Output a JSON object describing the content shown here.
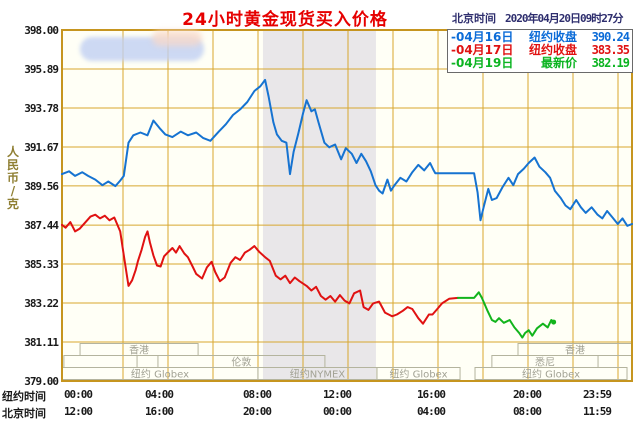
{
  "title": "24小时黄金现货买入价格",
  "header": {
    "clock_label": "北京时间",
    "clock_value": "2020年04月20日09时27分"
  },
  "y_axis": {
    "unit": "人\n民\n币\n/\n克",
    "ticks": [
      "398.00",
      "395.89",
      "393.78",
      "391.67",
      "389.56",
      "387.44",
      "385.33",
      "383.22",
      "381.11",
      "379.00"
    ]
  },
  "x_axis": {
    "rows": [
      {
        "header": "纽约时间",
        "labels": [
          "00:00",
          "04:00",
          "08:00",
          "12:00",
          "16:00",
          "20:00",
          "23:59"
        ]
      },
      {
        "header": "北京时间",
        "labels": [
          "12:00",
          "16:00",
          "20:00",
          "00:00",
          "04:00",
          "08:00",
          "11:59"
        ]
      }
    ]
  },
  "legend": {
    "rows": [
      {
        "marker": "-",
        "date": "04月16日",
        "label": "纽约收盘",
        "value": "390.24",
        "color": "#0c6cd8"
      },
      {
        "marker": "-",
        "date": "04月17日",
        "label": "纽约收盘",
        "value": "383.35",
        "color": "#e01212"
      },
      {
        "marker": "-",
        "date": "04月19日",
        "label": "最新价",
        "value": "382.19",
        "color": "#0cb422"
      }
    ]
  },
  "colors": {
    "grid": "#d8a72f",
    "plot_border": "#c6951f",
    "plot_bg": "#fffff6",
    "band": "#e9e7e9",
    "session_border": "#b4b49e",
    "session_text": "#a2a294",
    "blue": "#1673d1",
    "red": "#e01212",
    "green": "#12b41c"
  },
  "sessions": [
    {
      "row": 0,
      "from": 0.76,
      "to": 5.73,
      "label": "香港"
    },
    {
      "row": 0,
      "from": 19.2,
      "to": 24.0,
      "label": "香港"
    },
    {
      "row": 1,
      "from": 0.08,
      "to": 3.16,
      "label": ""
    },
    {
      "row": 1,
      "from": 4.04,
      "to": 11.07,
      "label": "伦敦"
    },
    {
      "row": 1,
      "from": 18.1,
      "to": 22.57,
      "label": "悉尼"
    },
    {
      "row": 2,
      "from": 0.0,
      "to": 8.25,
      "label": "纽约 Globex"
    },
    {
      "row": 2,
      "from": 8.25,
      "to": 13.26,
      "label": "纽约NYMEX"
    },
    {
      "row": 2,
      "from": 13.26,
      "to": 16.76,
      "label": "纽约 Globex"
    },
    {
      "row": 2,
      "from": 17.39,
      "to": 23.79,
      "label": "纽约 Globex"
    }
  ],
  "chart_data": {
    "type": "line",
    "title": "24小时黄金现货买入价格",
    "xlabel": "纽约时间 (小时)",
    "ylabel": "人民币/克",
    "x_range": [
      0,
      24
    ],
    "y_range": [
      379.0,
      398.0
    ],
    "y_ticks": [
      379.0,
      381.11,
      383.22,
      385.33,
      387.44,
      389.56,
      391.67,
      393.78,
      395.89,
      398.0
    ],
    "grid": true,
    "highlight_band": {
      "from_hour": 8.46,
      "to_hour": 13.22
    },
    "end_marker": {
      "hour": 20.7,
      "value": 382.19,
      "series": "04月19日 最新价"
    },
    "series": [
      {
        "name": "04月16日 纽约收盘 390.24",
        "color": "#1673d1",
        "points": [
          [
            0,
            390.2
          ],
          [
            0.3,
            390.35
          ],
          [
            0.55,
            390.1
          ],
          [
            0.85,
            390.3
          ],
          [
            1.1,
            390.1
          ],
          [
            1.4,
            389.9
          ],
          [
            1.7,
            389.6
          ],
          [
            1.95,
            389.8
          ],
          [
            2.25,
            389.55
          ],
          [
            2.45,
            389.85
          ],
          [
            2.6,
            390.1
          ],
          [
            2.8,
            391.9
          ],
          [
            3.0,
            392.3
          ],
          [
            3.3,
            392.45
          ],
          [
            3.6,
            392.3
          ],
          [
            3.85,
            393.1
          ],
          [
            4.1,
            392.7
          ],
          [
            4.35,
            392.35
          ],
          [
            4.65,
            392.2
          ],
          [
            5.0,
            392.5
          ],
          [
            5.3,
            392.3
          ],
          [
            5.65,
            392.45
          ],
          [
            5.95,
            392.15
          ],
          [
            6.25,
            392.0
          ],
          [
            6.6,
            392.5
          ],
          [
            6.9,
            392.9
          ],
          [
            7.2,
            393.4
          ],
          [
            7.5,
            393.7
          ],
          [
            7.8,
            394.1
          ],
          [
            8.1,
            394.7
          ],
          [
            8.35,
            394.95
          ],
          [
            8.55,
            395.3
          ],
          [
            8.7,
            394.4
          ],
          [
            8.9,
            393.0
          ],
          [
            9.05,
            392.35
          ],
          [
            9.25,
            392.0
          ],
          [
            9.45,
            391.9
          ],
          [
            9.6,
            390.2
          ],
          [
            9.75,
            391.4
          ],
          [
            9.95,
            392.4
          ],
          [
            10.15,
            393.5
          ],
          [
            10.3,
            394.2
          ],
          [
            10.5,
            393.6
          ],
          [
            10.65,
            393.7
          ],
          [
            10.8,
            393.0
          ],
          [
            11.05,
            391.9
          ],
          [
            11.25,
            391.65
          ],
          [
            11.5,
            391.8
          ],
          [
            11.75,
            391.0
          ],
          [
            11.95,
            391.6
          ],
          [
            12.2,
            391.3
          ],
          [
            12.4,
            390.8
          ],
          [
            12.6,
            391.3
          ],
          [
            12.8,
            390.9
          ],
          [
            13.0,
            390.35
          ],
          [
            13.2,
            389.6
          ],
          [
            13.35,
            389.3
          ],
          [
            13.5,
            389.15
          ],
          [
            13.7,
            389.9
          ],
          [
            13.85,
            389.3
          ],
          [
            14.0,
            389.6
          ],
          [
            14.25,
            390.0
          ],
          [
            14.5,
            389.8
          ],
          [
            14.75,
            390.3
          ],
          [
            15.0,
            390.7
          ],
          [
            15.25,
            390.4
          ],
          [
            15.5,
            390.8
          ],
          [
            15.65,
            390.4
          ],
          [
            15.72,
            390.25
          ],
          [
            17.35,
            390.25
          ],
          [
            17.5,
            389.2
          ],
          [
            17.62,
            387.7
          ],
          [
            17.75,
            388.4
          ],
          [
            17.95,
            389.4
          ],
          [
            18.1,
            388.8
          ],
          [
            18.3,
            388.9
          ],
          [
            18.55,
            389.5
          ],
          [
            18.8,
            390.0
          ],
          [
            19.0,
            389.6
          ],
          [
            19.2,
            390.2
          ],
          [
            19.45,
            390.5
          ],
          [
            19.65,
            390.8
          ],
          [
            19.9,
            391.1
          ],
          [
            20.1,
            390.6
          ],
          [
            20.35,
            390.3
          ],
          [
            20.55,
            390.0
          ],
          [
            20.75,
            389.3
          ],
          [
            21.0,
            388.9
          ],
          [
            21.2,
            388.5
          ],
          [
            21.4,
            388.3
          ],
          [
            21.65,
            388.8
          ],
          [
            21.85,
            388.4
          ],
          [
            22.05,
            388.1
          ],
          [
            22.3,
            388.4
          ],
          [
            22.55,
            388.0
          ],
          [
            22.75,
            387.8
          ],
          [
            22.95,
            388.2
          ],
          [
            23.15,
            387.9
          ],
          [
            23.4,
            387.5
          ],
          [
            23.6,
            387.8
          ],
          [
            23.8,
            387.4
          ],
          [
            24,
            387.5
          ]
        ]
      },
      {
        "name": "04月17日 纽约收盘 383.35",
        "color": "#e01212",
        "points": [
          [
            0,
            387.45
          ],
          [
            0.15,
            387.3
          ],
          [
            0.35,
            387.6
          ],
          [
            0.55,
            387.1
          ],
          [
            0.75,
            387.25
          ],
          [
            1.2,
            387.9
          ],
          [
            1.4,
            388.0
          ],
          [
            1.6,
            387.8
          ],
          [
            1.8,
            387.95
          ],
          [
            2.0,
            387.7
          ],
          [
            2.2,
            387.85
          ],
          [
            2.45,
            387.1
          ],
          [
            2.6,
            385.8
          ],
          [
            2.8,
            384.15
          ],
          [
            2.95,
            384.45
          ],
          [
            3.1,
            385.0
          ],
          [
            3.2,
            385.5
          ],
          [
            3.35,
            386.1
          ],
          [
            3.5,
            386.8
          ],
          [
            3.6,
            387.1
          ],
          [
            3.7,
            386.5
          ],
          [
            3.85,
            385.8
          ],
          [
            4.0,
            385.25
          ],
          [
            4.15,
            385.2
          ],
          [
            4.3,
            385.75
          ],
          [
            4.45,
            385.95
          ],
          [
            4.65,
            386.2
          ],
          [
            4.8,
            385.95
          ],
          [
            4.95,
            386.3
          ],
          [
            5.15,
            385.9
          ],
          [
            5.3,
            385.7
          ],
          [
            5.5,
            385.2
          ],
          [
            5.65,
            384.8
          ],
          [
            5.9,
            384.55
          ],
          [
            6.1,
            385.15
          ],
          [
            6.3,
            385.45
          ],
          [
            6.45,
            384.9
          ],
          [
            6.65,
            384.4
          ],
          [
            6.85,
            384.6
          ],
          [
            7.1,
            385.4
          ],
          [
            7.3,
            385.7
          ],
          [
            7.5,
            385.55
          ],
          [
            7.7,
            385.95
          ],
          [
            7.9,
            386.1
          ],
          [
            8.1,
            386.3
          ],
          [
            8.3,
            386.0
          ],
          [
            8.55,
            385.7
          ],
          [
            8.75,
            385.5
          ],
          [
            9.0,
            384.7
          ],
          [
            9.2,
            384.5
          ],
          [
            9.4,
            384.7
          ],
          [
            9.6,
            384.3
          ],
          [
            9.8,
            384.6
          ],
          [
            10.0,
            384.4
          ],
          [
            10.3,
            384.15
          ],
          [
            10.5,
            383.9
          ],
          [
            10.7,
            384.1
          ],
          [
            10.9,
            383.6
          ],
          [
            11.1,
            383.4
          ],
          [
            11.3,
            383.6
          ],
          [
            11.5,
            383.3
          ],
          [
            11.7,
            383.65
          ],
          [
            11.9,
            383.35
          ],
          [
            12.1,
            383.2
          ],
          [
            12.3,
            383.75
          ],
          [
            12.55,
            383.9
          ],
          [
            12.7,
            383.0
          ],
          [
            12.9,
            382.85
          ],
          [
            13.1,
            383.2
          ],
          [
            13.35,
            383.3
          ],
          [
            13.6,
            382.7
          ],
          [
            13.9,
            382.5
          ],
          [
            14.1,
            382.6
          ],
          [
            14.35,
            382.8
          ],
          [
            14.55,
            383.0
          ],
          [
            14.75,
            382.9
          ],
          [
            15.0,
            382.4
          ],
          [
            15.2,
            382.1
          ],
          [
            15.45,
            382.6
          ],
          [
            15.6,
            382.6
          ],
          [
            15.8,
            382.9
          ],
          [
            16.0,
            383.2
          ],
          [
            16.3,
            383.45
          ],
          [
            16.67,
            383.5
          ]
        ]
      },
      {
        "name": "04月19日 最新价 382.19",
        "color": "#12b41c",
        "points": [
          [
            16.67,
            383.5
          ],
          [
            17.35,
            383.5
          ],
          [
            17.55,
            383.8
          ],
          [
            17.68,
            383.5
          ],
          [
            17.9,
            382.85
          ],
          [
            18.1,
            382.3
          ],
          [
            18.25,
            382.2
          ],
          [
            18.4,
            382.4
          ],
          [
            18.6,
            382.15
          ],
          [
            18.85,
            382.3
          ],
          [
            19.05,
            381.9
          ],
          [
            19.25,
            381.6
          ],
          [
            19.38,
            381.35
          ],
          [
            19.5,
            381.6
          ],
          [
            19.65,
            381.75
          ],
          [
            19.8,
            381.45
          ],
          [
            20.0,
            381.85
          ],
          [
            20.25,
            382.1
          ],
          [
            20.45,
            381.9
          ],
          [
            20.6,
            382.3
          ],
          [
            20.7,
            382.19
          ]
        ]
      }
    ]
  }
}
